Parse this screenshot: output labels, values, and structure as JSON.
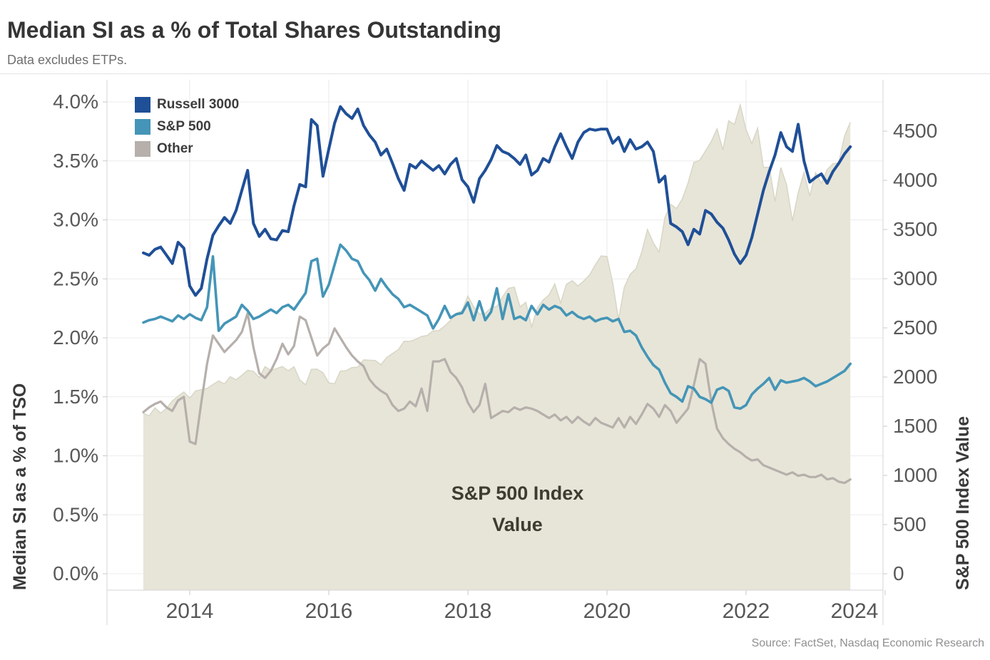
{
  "header": {
    "title": "Median SI as a % of Total Shares Outstanding",
    "subtitle": "Data excludes ETPs."
  },
  "source": "Source: FactSet, Nasdaq Economic Research",
  "chart_data": {
    "type": "line+area",
    "title": "Median SI as a % of Total Shares Outstanding",
    "subtitle": "Data excludes ETPs.",
    "grid": "on",
    "legend_position": "top-left-inside",
    "x_start": 2013.333,
    "x_step": 0.0833333,
    "x_axis": {
      "ticks": [
        {
          "year": 2014,
          "label": "2014"
        },
        {
          "year": 2016,
          "label": "2016"
        },
        {
          "year": 2018,
          "label": "2018"
        },
        {
          "year": 2020,
          "label": "2020"
        },
        {
          "year": 2022,
          "label": "2022"
        },
        {
          "year": 2024,
          "label": "2024"
        }
      ]
    },
    "left_axis": {
      "title": "Median SI as a % of TSO",
      "range": [
        0,
        4.0
      ],
      "ticks": [
        {
          "v": 0.0,
          "label": "0.0%"
        },
        {
          "v": 0.5,
          "label": "0.5%"
        },
        {
          "v": 1.0,
          "label": "1.0%"
        },
        {
          "v": 1.5,
          "label": "1.5%"
        },
        {
          "v": 2.0,
          "label": "2.0%"
        },
        {
          "v": 2.5,
          "label": "2.5%"
        },
        {
          "v": 3.0,
          "label": "3.0%"
        },
        {
          "v": 3.5,
          "label": "3.5%"
        },
        {
          "v": 4.0,
          "label": "4.0%"
        }
      ]
    },
    "right_axis": {
      "title": "S&P 500 Index Value",
      "range": [
        0,
        4500
      ],
      "ticks": [
        {
          "v": 0,
          "label": "0"
        },
        {
          "v": 500,
          "label": "500"
        },
        {
          "v": 1000,
          "label": "1000"
        },
        {
          "v": 1500,
          "label": "1500"
        },
        {
          "v": 2000,
          "label": "2000"
        },
        {
          "v": 2500,
          "label": "2500"
        },
        {
          "v": 3000,
          "label": "3000"
        },
        {
          "v": 3500,
          "label": "3500"
        },
        {
          "v": 4000,
          "label": "4000"
        },
        {
          "v": 4500,
          "label": "4500"
        }
      ]
    },
    "series": [
      {
        "name": "Russell 3000",
        "color": "#1F4F97",
        "width": 4,
        "values": [
          2.72,
          2.7,
          2.75,
          2.77,
          2.7,
          2.63,
          2.81,
          2.76,
          2.44,
          2.36,
          2.42,
          2.67,
          2.87,
          2.95,
          3.02,
          2.97,
          3.08,
          3.25,
          3.42,
          2.97,
          2.86,
          2.92,
          2.84,
          2.83,
          2.91,
          2.9,
          3.12,
          3.3,
          3.28,
          3.85,
          3.8,
          3.37,
          3.6,
          3.82,
          3.96,
          3.9,
          3.86,
          3.94,
          3.8,
          3.72,
          3.66,
          3.55,
          3.6,
          3.48,
          3.35,
          3.25,
          3.47,
          3.44,
          3.5,
          3.46,
          3.42,
          3.46,
          3.39,
          3.47,
          3.52,
          3.34,
          3.28,
          3.15,
          3.35,
          3.42,
          3.51,
          3.63,
          3.58,
          3.56,
          3.52,
          3.47,
          3.55,
          3.38,
          3.42,
          3.52,
          3.49,
          3.62,
          3.73,
          3.62,
          3.52,
          3.66,
          3.74,
          3.77,
          3.76,
          3.77,
          3.77,
          3.65,
          3.7,
          3.58,
          3.68,
          3.6,
          3.62,
          3.66,
          3.58,
          3.32,
          3.37,
          2.97,
          2.94,
          2.9,
          2.79,
          2.92,
          2.88,
          3.08,
          3.05,
          2.98,
          2.93,
          2.83,
          2.71,
          2.63,
          2.7,
          2.85,
          3.05,
          3.25,
          3.41,
          3.55,
          3.74,
          3.62,
          3.58,
          3.81,
          3.5,
          3.32,
          3.36,
          3.39,
          3.31,
          3.41,
          3.48,
          3.56,
          3.62
        ]
      },
      {
        "name": "S&P 500",
        "color": "#4495B7",
        "width": 3.6,
        "values": [
          2.13,
          2.15,
          2.16,
          2.18,
          2.16,
          2.14,
          2.19,
          2.16,
          2.2,
          2.17,
          2.15,
          2.26,
          2.69,
          2.06,
          2.12,
          2.15,
          2.18,
          2.28,
          2.23,
          2.16,
          2.18,
          2.21,
          2.24,
          2.21,
          2.26,
          2.28,
          2.24,
          2.31,
          2.38,
          2.65,
          2.67,
          2.35,
          2.45,
          2.62,
          2.79,
          2.74,
          2.67,
          2.65,
          2.55,
          2.49,
          2.4,
          2.5,
          2.43,
          2.37,
          2.33,
          2.26,
          2.28,
          2.25,
          2.22,
          2.19,
          2.08,
          2.16,
          2.27,
          2.17,
          2.2,
          2.21,
          2.3,
          2.15,
          2.31,
          2.15,
          2.22,
          2.42,
          2.16,
          2.37,
          2.16,
          2.18,
          2.15,
          2.27,
          2.2,
          2.28,
          2.24,
          2.27,
          2.25,
          2.19,
          2.22,
          2.18,
          2.16,
          2.18,
          2.14,
          2.16,
          2.17,
          2.14,
          2.16,
          2.05,
          2.06,
          2.02,
          1.92,
          1.84,
          1.77,
          1.73,
          1.62,
          1.53,
          1.5,
          1.46,
          1.59,
          1.57,
          1.5,
          1.48,
          1.45,
          1.56,
          1.58,
          1.55,
          1.41,
          1.4,
          1.43,
          1.52,
          1.57,
          1.61,
          1.66,
          1.56,
          1.64,
          1.62,
          1.63,
          1.64,
          1.66,
          1.63,
          1.59,
          1.61,
          1.63,
          1.66,
          1.69,
          1.72,
          1.78
        ]
      },
      {
        "name": "Other",
        "color": "#B6AFAB",
        "width": 3.2,
        "values": [
          1.37,
          1.41,
          1.44,
          1.46,
          1.41,
          1.38,
          1.47,
          1.5,
          1.12,
          1.1,
          1.45,
          1.78,
          2.02,
          1.95,
          1.88,
          1.93,
          1.98,
          2.05,
          2.21,
          1.92,
          1.7,
          1.66,
          1.72,
          1.82,
          1.95,
          1.86,
          1.93,
          2.18,
          2.15,
          2.0,
          1.85,
          1.91,
          1.95,
          2.08,
          2.0,
          1.92,
          1.85,
          1.8,
          1.76,
          1.65,
          1.59,
          1.55,
          1.52,
          1.43,
          1.38,
          1.4,
          1.46,
          1.42,
          1.57,
          1.38,
          1.8,
          1.8,
          1.82,
          1.71,
          1.66,
          1.58,
          1.45,
          1.37,
          1.43,
          1.61,
          1.32,
          1.35,
          1.38,
          1.37,
          1.41,
          1.39,
          1.41,
          1.4,
          1.38,
          1.35,
          1.32,
          1.35,
          1.3,
          1.33,
          1.28,
          1.33,
          1.29,
          1.26,
          1.32,
          1.28,
          1.26,
          1.24,
          1.32,
          1.24,
          1.33,
          1.27,
          1.35,
          1.44,
          1.4,
          1.33,
          1.43,
          1.38,
          1.28,
          1.34,
          1.4,
          1.6,
          1.82,
          1.78,
          1.46,
          1.23,
          1.15,
          1.1,
          1.06,
          1.03,
          0.99,
          0.96,
          0.97,
          0.92,
          0.9,
          0.88,
          0.86,
          0.84,
          0.86,
          0.83,
          0.84,
          0.82,
          0.82,
          0.84,
          0.8,
          0.81,
          0.78,
          0.77,
          0.8
        ]
      }
    ],
    "area_series": {
      "name": "S&P 500 Index Value",
      "axis": "right",
      "fill": "#E7E5D8",
      "edge": "#D8D6C5",
      "values": [
        1631,
        1606,
        1686,
        1633,
        1682,
        1757,
        1806,
        1848,
        1783,
        1859,
        1872,
        1884,
        1924,
        1960,
        1931,
        2003,
        1972,
        2018,
        2068,
        2059,
        1995,
        2105,
        2068,
        2086,
        2107,
        2063,
        2104,
        1972,
        1920,
        2079,
        2080,
        2044,
        1940,
        1932,
        2060,
        2065,
        2097,
        2099,
        2174,
        2171,
        2168,
        2126,
        2199,
        2239,
        2279,
        2364,
        2363,
        2384,
        2412,
        2423,
        2470,
        2472,
        2519,
        2575,
        2648,
        2674,
        2824,
        2714,
        2641,
        2648,
        2705,
        2718,
        2816,
        2902,
        2914,
        2712,
        2760,
        2507,
        2704,
        2784,
        2834,
        2946,
        2752,
        2942,
        2980,
        2926,
        2977,
        3038,
        3141,
        3231,
        3226,
        2954,
        2585,
        2912,
        3044,
        3100,
        3271,
        3500,
        3363,
        3270,
        3622,
        3756,
        3714,
        3811,
        3973,
        4181,
        4204,
        4298,
        4395,
        4523,
        4308,
        4605,
        4567,
        4766,
        4516,
        4374,
        4530,
        4132,
        4132,
        3785,
        4130,
        3955,
        3586,
        3872,
        4080,
        3840,
        4077,
        3970,
        4109,
        4169,
        4180,
        4450,
        4589
      ]
    },
    "annotation": {
      "lines": [
        "S&P 500 Index",
        "Value"
      ]
    }
  }
}
